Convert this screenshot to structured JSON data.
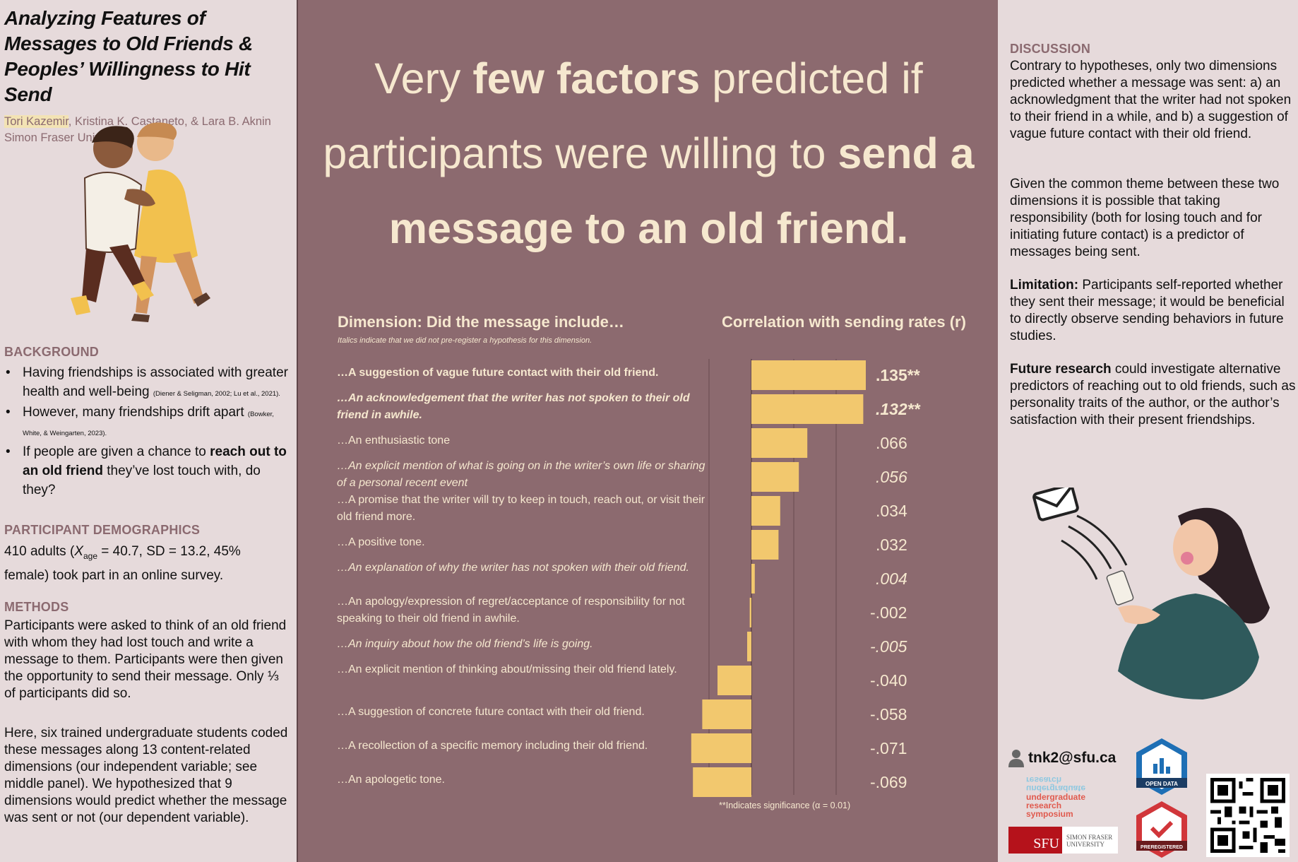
{
  "title": "Analyzing Features of Messages to Old Friends & Peoples’ Willingness to Hit Send",
  "authors": {
    "first": "Tori Kazemir",
    "rest": ", Kristina K. Castaneto, & Lara B. Aknin",
    "affiliation": "Simon Fraser University"
  },
  "background": {
    "heading": "BACKGROUND",
    "b1_text": "Having friendships is associated with greater health and well-being",
    "b1_cite": "(Diener & Seligman, 2002; Lu et al., 2021).",
    "b2_text": "However, many friendships drift apart",
    "b2_cite": "(Bowker, White, & Weingarten, 2023).",
    "b3_pre": "If people are given a chance to",
    "b3_bold": "reach out to an old friend",
    "b3_post": "they’ve lost touch with, do they?"
  },
  "demographics": {
    "heading": "PARTICIPANT DEMOGRAPHICS",
    "pre": "410 adults (",
    "xvar": "X",
    "sub": "age",
    "post": " = 40.7, SD = 13.2, 45% female) took part in an online survey."
  },
  "methods": {
    "heading": "METHODS",
    "p1": "Participants were asked to think of an old friend with whom they had lost touch and write a message to them. Participants were then given the opportunity to send their message. Only ⅓ of participants did so.",
    "p2": "Here, six trained undergraduate students coded these messages along 13 content-related dimensions (our independent variable; see middle panel). We hypothesized that 9 dimensions would predict whether the message was sent or not (our dependent variable)."
  },
  "headline": {
    "a": "Very ",
    "b": "few factors",
    "c": " predicted if participants were willing to ",
    "d": "send a message to an old friend."
  },
  "chart_headers": {
    "dimension": "Dimension: Did the message include…",
    "note": "Italics indicate that we did not pre-register a hypothesis for this dimension.",
    "correlation": "Correlation with sending rates (r)",
    "significance": "**Indicates significance (α = 0.01)"
  },
  "chart_data": {
    "type": "bar",
    "orientation": "horizontal",
    "categories": [
      "…A suggestion of vague future contact with their old friend.",
      "…An acknowledgement that the writer has not spoken to their old friend in awhile.",
      "…An enthusiastic tone",
      "…An explicit mention of what is going on in the writer’s own life or sharing of a personal recent event",
      "…A promise that the writer will try to keep in touch, reach out, or visit their old friend more.",
      "…A positive tone.",
      "…An explanation of why the writer has not spoken with their old friend.",
      "…An apology/expression of regret/acceptance of responsibility for not speaking to their old friend in awhile.",
      "…An inquiry about how the old friend’s life is going.",
      "…An explicit mention of thinking about/missing their old friend lately.",
      "…A suggestion of concrete future contact with their old friend.",
      "…A recollection of a specific memory including their old friend.",
      "…An apologetic tone."
    ],
    "values": [
      0.135,
      0.132,
      0.066,
      0.056,
      0.034,
      0.032,
      0.004,
      -0.002,
      -0.005,
      -0.04,
      -0.058,
      -0.071,
      -0.069
    ],
    "value_labels": [
      ".135**",
      ".132**",
      ".066",
      ".056",
      ".034",
      ".032",
      ".004",
      "-.002",
      "-.005",
      "-.040",
      "-.058",
      "-.071",
      "-.069"
    ],
    "italic": [
      false,
      true,
      false,
      true,
      false,
      false,
      true,
      false,
      true,
      false,
      false,
      false,
      false
    ],
    "significant": [
      true,
      true,
      false,
      false,
      false,
      false,
      false,
      false,
      false,
      false,
      false,
      false,
      false
    ],
    "bar_color": "#f2c86e",
    "gridlines": [
      -0.05,
      0.05,
      0.1
    ],
    "xlim": [
      -0.075,
      0.14
    ]
  },
  "discussion": {
    "heading": "DISCUSSION",
    "p1": "Contrary to hypotheses, only two dimensions predicted whether a message was sent: a) an acknowledgment that the writer had not spoken to their friend in a while, and b) a suggestion of vague future contact with their old friend.",
    "p2": "Given the common theme between these two dimensions it is possible that taking responsibility (both for losing touch and for initiating future contact) is a predictor of messages being sent.",
    "lim_bold": "Limitation:",
    "lim_text": " Participants self-reported whether they sent their message; it would be beneficial to directly observe sending behaviors in future studies.",
    "fut_bold": "Future research",
    "fut_text": " could investigate alternative predictors of reaching out to old friends, such as personality traits of the author, or the author’s satisfaction with their present friendships."
  },
  "contact": {
    "email": "tnk2@sfu.ca"
  },
  "logos": {
    "urs": "undergraduate research symposium",
    "urs_mirror": "undergraduate research",
    "sfu_short": "SFU",
    "sfu_long_1": "SIMON FRASER",
    "sfu_long_2": "UNIVERSITY",
    "open_data": "OPEN DATA",
    "preregistered": "PREREGISTERED"
  },
  "colors": {
    "panel": "#8c6a6f",
    "cream": "#f6e8cf",
    "mauve": "#8b6a70",
    "bar": "#f2c86e",
    "background": "#e6dadb"
  }
}
